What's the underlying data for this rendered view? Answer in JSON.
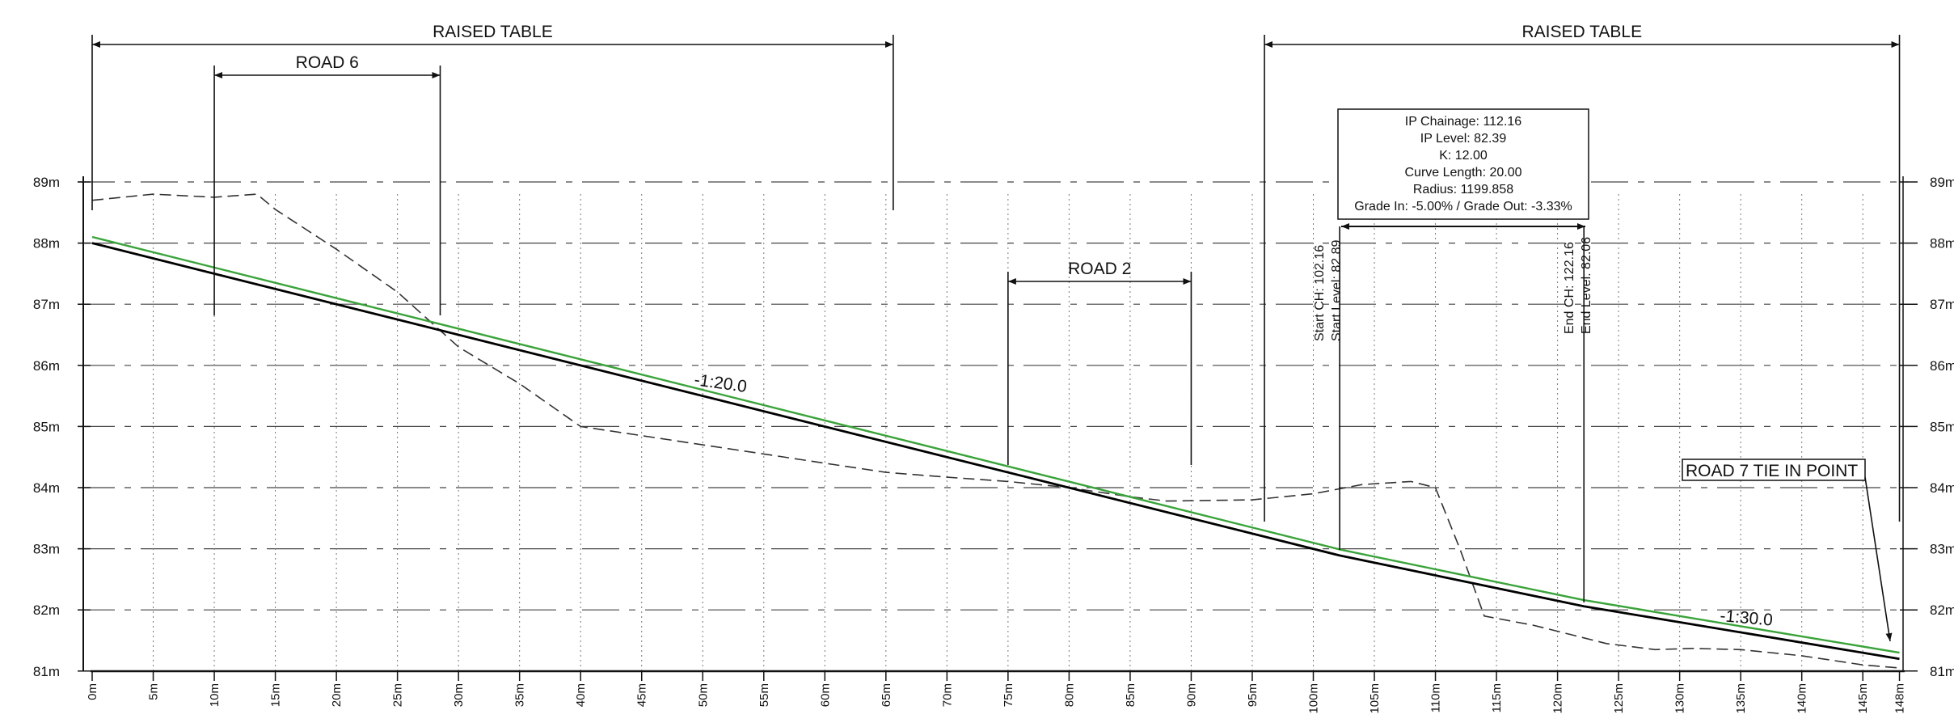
{
  "y_axis": {
    "labels_left": [
      "89m",
      "88m",
      "87m",
      "86m",
      "85m",
      "84m",
      "83m",
      "82m",
      "81m"
    ],
    "labels_right": [
      "89m",
      "88m",
      "87m",
      "86m",
      "85m",
      "84m",
      "83m",
      "82m",
      "81m"
    ],
    "values": [
      89,
      88,
      87,
      86,
      85,
      84,
      83,
      82,
      81
    ]
  },
  "x_axis": {
    "labels": [
      "0m",
      "5m",
      "10m",
      "15m",
      "20m",
      "25m",
      "30m",
      "35m",
      "40m",
      "45m",
      "50m",
      "55m",
      "60m",
      "65m",
      "70m",
      "75m",
      "80m",
      "85m",
      "90m",
      "95m",
      "100m",
      "105m",
      "110m",
      "115m",
      "120m",
      "125m",
      "130m",
      "135m",
      "140m",
      "145m",
      "148m"
    ],
    "values": [
      0,
      5,
      10,
      15,
      20,
      25,
      30,
      35,
      40,
      45,
      50,
      55,
      60,
      65,
      70,
      75,
      80,
      85,
      90,
      95,
      100,
      105,
      110,
      115,
      120,
      125,
      130,
      135,
      140,
      145,
      148
    ]
  },
  "dimensions": [
    {
      "label": "RAISED TABLE",
      "from": 0,
      "to": 65.6
    },
    {
      "label": "ROAD 6",
      "from": 10,
      "to": 28.5
    },
    {
      "label": "ROAD 2",
      "from": 75,
      "to": 90
    },
    {
      "label": "RAISED TABLE",
      "from": 96,
      "to": 148
    }
  ],
  "grades": {
    "grade_1": "-1:20.0",
    "grade_2": "-1:30.0"
  },
  "curve_box": {
    "lines": [
      "IP Chainage: 112.16",
      "IP Level: 82.39",
      "K: 12.00",
      "Curve Length: 20.00",
      "Radius: 1199.858",
      "Grade In: -5.00% / Grade Out: -3.33%"
    ]
  },
  "curve_start": {
    "line1": "Start CH: 102.16",
    "line2": "Start Level: 82.89",
    "ch": 102.16
  },
  "curve_end": {
    "line1": "End CH: 122.16",
    "line2": "End Level: 82.06",
    "ch": 122.16
  },
  "callout": {
    "label": "ROAD 7 TIE IN POINT"
  },
  "colors": {
    "design_line": "#000000",
    "offset_line": "#3aa33a",
    "existing_ground": "#333333",
    "grid": "#444444"
  },
  "chart_data": {
    "type": "line",
    "xlabel": "",
    "ylabel": "",
    "xlim": [
      0,
      148
    ],
    "ylim": [
      81,
      89
    ],
    "series": [
      {
        "x": [
          0,
          102.16,
          122.16,
          148
        ],
        "y": [
          88.0,
          82.89,
          82.06,
          81.2
        ]
      },
      {
        "x": [
          0,
          102.16,
          122.16,
          148
        ],
        "y": [
          88.1,
          82.99,
          82.16,
          81.3
        ]
      },
      {
        "x": [
          0,
          5,
          10,
          13.5,
          15,
          20,
          25,
          30,
          35,
          40,
          45,
          50,
          55,
          60,
          65,
          70,
          75,
          80,
          85,
          88,
          95,
          100,
          104,
          108,
          110,
          112,
          114,
          118,
          121,
          124,
          128,
          131,
          135,
          140,
          145,
          148
        ],
        "y": [
          88.7,
          88.8,
          88.75,
          88.8,
          88.55,
          87.9,
          87.2,
          86.3,
          85.7,
          85.0,
          84.85,
          84.7,
          84.55,
          84.4,
          84.25,
          84.17,
          84.1,
          84.0,
          83.85,
          83.78,
          83.8,
          83.9,
          84.05,
          84.1,
          84.0,
          83.0,
          81.9,
          81.75,
          81.6,
          81.45,
          81.35,
          81.37,
          81.35,
          81.25,
          81.1,
          81.05
        ]
      }
    ]
  }
}
